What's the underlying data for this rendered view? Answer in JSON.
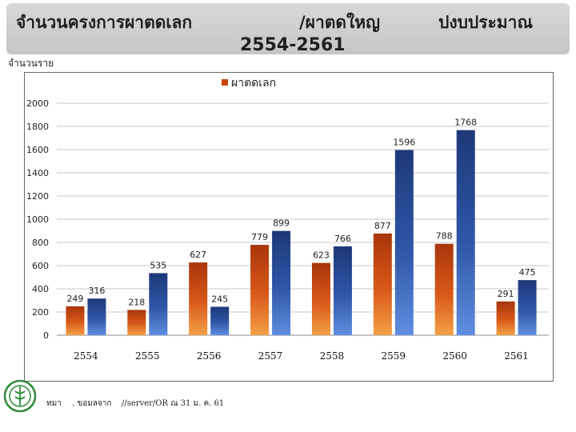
{
  "header": {
    "title_main": "จำนวนครงการผาตดเลก",
    "title_sep": "/ผาตดใหญ",
    "title_budget": "ปงบประมาณ",
    "title_years": "2554-2561"
  },
  "colors": {
    "minor_bar": "#c8470f",
    "major_bar": "#2a4d99",
    "header_bg": "#cfcfcf"
  },
  "chart_data": {
    "type": "bar",
    "ylabel": "จำนวนราย",
    "legend_label": "ผาตดเลก",
    "legend_position": "top-center",
    "grid": true,
    "ylim": [
      0,
      2000
    ],
    "yticks": [
      0,
      200,
      400,
      600,
      800,
      1000,
      1200,
      1400,
      1600,
      1800,
      2000
    ],
    "categories": [
      "2554",
      "2555",
      "2556",
      "2557",
      "2558",
      "2559",
      "2560",
      "2561"
    ],
    "series": [
      {
        "name": "ผาตดเลก",
        "values": [
          249,
          218,
          627,
          779,
          623,
          877,
          788,
          291
        ]
      },
      {
        "values": [
          316,
          535,
          245,
          899,
          766,
          1596,
          1768,
          475
        ]
      }
    ]
  },
  "footer": {
    "source_label": "ทมา",
    "source_from": ". ขอมลจาก",
    "source_path": "//server/OR ณ 31 ม. ค. 61"
  }
}
